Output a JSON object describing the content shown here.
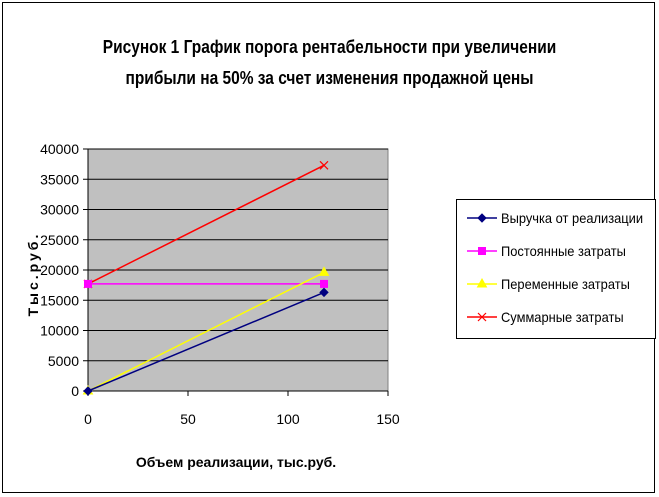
{
  "chart_data": {
    "type": "line",
    "title_line1": "Рисунок 1 График порога рентабельности при увеличении",
    "title_line2": "прибыли на 50% за счет изменения продажной цены",
    "xlabel": "Объем реализации, тыс.руб.",
    "ylabel": "Тыс.руб.",
    "xlim": [
      0,
      150
    ],
    "ylim": [
      0,
      40000
    ],
    "x_ticks": [
      0,
      50,
      100,
      150
    ],
    "y_ticks": [
      0,
      5000,
      10000,
      15000,
      20000,
      25000,
      30000,
      35000,
      40000
    ],
    "grid": "horizontal",
    "plot_background": "#c0c0c0",
    "legend_position": "right",
    "series": [
      {
        "name": "Выручка от реализации",
        "color": "#000080",
        "marker": "diamond",
        "points": [
          [
            0,
            0
          ],
          [
            118,
            16300
          ]
        ]
      },
      {
        "name": "Постоянные затраты",
        "color": "#ff00ff",
        "marker": "square",
        "points": [
          [
            0,
            17700
          ],
          [
            118,
            17700
          ]
        ]
      },
      {
        "name": "Переменные затраты",
        "color": "#ffff00",
        "marker": "triangle",
        "points": [
          [
            0,
            0
          ],
          [
            118,
            19600
          ]
        ]
      },
      {
        "name": "Суммарные затраты",
        "color": "#ff0000",
        "marker": "x",
        "points": [
          [
            0,
            17700
          ],
          [
            118,
            37300
          ]
        ]
      }
    ]
  }
}
